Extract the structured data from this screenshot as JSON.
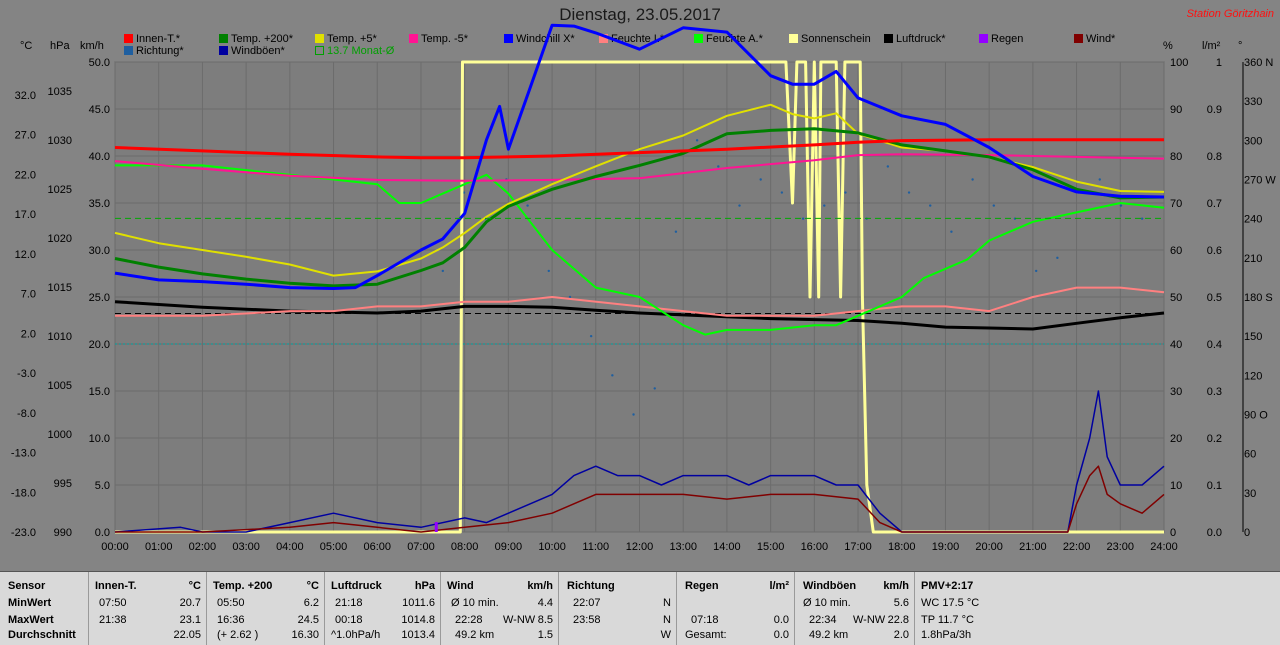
{
  "title": "Dienstag, 23.05.2017",
  "station": "Station Göritzhain",
  "legend": [
    {
      "label": "Innen-T.*",
      "color": "#ff0000"
    },
    {
      "label": "Temp. +200*",
      "color": "#008000"
    },
    {
      "label": "Temp. +5*",
      "color": "#e0e000"
    },
    {
      "label": "Temp. -5*",
      "color": "#ff1493"
    },
    {
      "label": "Windchill X*",
      "color": "#0000ff"
    },
    {
      "label": "Feuchte I.*",
      "color": "#ff8080"
    },
    {
      "label": "Feuchte A.*",
      "color": "#00ff00"
    },
    {
      "label": "Sonnenschein",
      "color": "#ffff99"
    },
    {
      "label": "Luftdruck*",
      "color": "#000000"
    },
    {
      "label": "Regen",
      "color": "#9400ff"
    },
    {
      "label": "Wind*",
      "color": "#800000"
    },
    {
      "label": "Richtung*",
      "color": "#1f5fa0"
    },
    {
      "label": "Windböen*",
      "color": "#0000a0"
    },
    {
      "label": "13.7 Monat-Ø",
      "color": "#00aa00"
    }
  ],
  "units": {
    "degc": "°C",
    "hpa": "hPa",
    "kmh": "km/h",
    "pct": "%",
    "lm2": "l/m²",
    "deg": "°"
  },
  "chart_data": {
    "type": "line",
    "x_ticks": [
      "00:00",
      "01:00",
      "02:00",
      "03:00",
      "04:00",
      "05:00",
      "06:00",
      "07:00",
      "08:00",
      "09:00",
      "10:00",
      "11:00",
      "12:00",
      "13:00",
      "14:00",
      "15:00",
      "16:00",
      "17:00",
      "18:00",
      "19:00",
      "20:00",
      "21:00",
      "22:00",
      "23:00",
      "24:00"
    ],
    "axes": {
      "temp_c": [
        "32.0",
        "27.0",
        "22.0",
        "17.0",
        "12.0",
        "7.0",
        "2.0",
        "-3.0",
        "-8.0",
        "-13.0",
        "-18.0",
        "-23.0"
      ],
      "pressure_hpa": [
        "1035",
        "1030",
        "1025",
        "1020",
        "1015",
        "1010",
        "1005",
        "1000",
        "995",
        "990"
      ],
      "wind_kmh": [
        "50.0",
        "45.0",
        "40.0",
        "35.0",
        "30.0",
        "25.0",
        "20.0",
        "15.0",
        "10.0",
        "5.0",
        "0.0"
      ],
      "humidity_pct": [
        "100",
        "90",
        "80",
        "70",
        "60",
        "50",
        "40",
        "30",
        "20",
        "10",
        "0"
      ],
      "rain_lm2": [
        "1",
        "0.9",
        "0.8",
        "0.7",
        "0.6",
        "0.5",
        "0.4",
        "0.3",
        "0.2",
        "0.1",
        "0.0"
      ],
      "direction_deg": [
        "360 N",
        "330",
        "300",
        "270 W",
        "240",
        "210",
        "180 S",
        "150",
        "120",
        "90 O",
        "60",
        "30",
        "0"
      ]
    },
    "ylim_temp": [
      -23,
      32
    ],
    "series": [
      {
        "name": "Innen-T.*",
        "color": "#ff0000",
        "width": 3,
        "unit": "temp",
        "x": [
          0,
          2,
          4,
          6,
          7,
          8,
          10,
          12,
          14,
          16,
          17,
          18,
          20,
          22,
          24
        ],
        "y": [
          22.0,
          21.6,
          21.2,
          20.9,
          20.8,
          20.8,
          21.0,
          21.4,
          21.8,
          22.3,
          22.6,
          22.8,
          22.9,
          22.9,
          22.9
        ]
      },
      {
        "name": "Temp. +200*",
        "color": "#008000",
        "width": 3,
        "unit": "temp",
        "x": [
          0,
          1,
          2,
          3,
          4,
          5,
          6,
          7,
          7.5,
          8,
          8.5,
          9,
          10,
          11,
          12,
          13,
          14,
          15,
          16,
          17,
          18,
          19,
          20,
          21,
          22,
          23,
          24
        ],
        "y": [
          9.0,
          8.0,
          7.2,
          6.6,
          6.1,
          5.8,
          6.0,
          7.6,
          8.5,
          10.3,
          13.3,
          15.1,
          17.1,
          18.6,
          19.9,
          21.3,
          23.6,
          24.0,
          24.2,
          23.7,
          22.3,
          21.6,
          20.9,
          19.4,
          17.1,
          16.1,
          16.2
        ]
      },
      {
        "name": "Temp. +5*",
        "color": "#e0e000",
        "width": 2,
        "unit": "temp",
        "x": [
          0,
          1,
          2,
          3,
          4,
          5,
          6,
          7,
          7.5,
          8,
          8.5,
          9,
          10,
          11,
          12,
          13,
          14,
          15,
          15.5,
          16,
          16.5,
          17,
          18,
          19,
          20,
          21,
          22,
          23,
          24
        ],
        "y": [
          12.0,
          10.8,
          10.0,
          9.2,
          8.3,
          7.0,
          7.5,
          9.0,
          10.3,
          12.0,
          13.9,
          15.4,
          17.7,
          19.8,
          21.8,
          23.4,
          25.7,
          27.0,
          25.9,
          25.4,
          26.0,
          23.6,
          22.0,
          21.6,
          20.9,
          19.7,
          18.0,
          16.9,
          16.8
        ]
      },
      {
        "name": "Temp. -5*",
        "color": "#ff1493",
        "width": 2,
        "unit": "temp",
        "x": [
          0,
          2,
          4,
          6,
          8,
          10,
          12,
          14,
          16,
          17,
          18,
          20,
          22,
          24
        ],
        "y": [
          20.4,
          19.5,
          18.7,
          18.2,
          18.1,
          18.2,
          18.4,
          19.6,
          20.5,
          21.1,
          21.2,
          21.1,
          20.9,
          20.7
        ]
      },
      {
        "name": "Windchill X*",
        "color": "#0000ff",
        "width": 3,
        "unit": "temp",
        "x": [
          0,
          1,
          2,
          3,
          4,
          5,
          5.5,
          6,
          7,
          7.5,
          8,
          8.5,
          8.8,
          9,
          9.5,
          10,
          10.5,
          11,
          12,
          13,
          14,
          15,
          15.5,
          16,
          16.5,
          17,
          18,
          19,
          20,
          21,
          22,
          23,
          24
        ],
        "y": [
          7.3,
          6.5,
          6.3,
          6.0,
          5.6,
          5.5,
          5.6,
          7.0,
          10.0,
          11.3,
          14.3,
          22.9,
          26.8,
          21.8,
          29.0,
          36.3,
          36.2,
          35.4,
          33.5,
          36.0,
          35.5,
          30.4,
          29.4,
          29.4,
          30.9,
          27.8,
          25.7,
          24.7,
          22.0,
          18.6,
          16.8,
          16.3,
          16.2
        ]
      },
      {
        "name": "Feuchte I.*",
        "color": "#ff8080",
        "width": 2,
        "unit": "pct",
        "x": [
          0,
          2,
          4,
          5,
          6,
          7,
          8,
          9,
          10,
          12,
          13,
          14,
          15,
          16,
          17,
          18,
          19,
          20,
          21,
          22,
          23,
          24
        ],
        "y": [
          46,
          46,
          47,
          47,
          48,
          48,
          49,
          49,
          50,
          48,
          47,
          46,
          46,
          46,
          47,
          48,
          48,
          47,
          50,
          52,
          52,
          51
        ]
      },
      {
        "name": "Feuchte A.*",
        "color": "#00ff00",
        "width": 2,
        "unit": "pct",
        "x": [
          0,
          1,
          2,
          3,
          4,
          5,
          6,
          6.5,
          7,
          7.5,
          8,
          8.5,
          9,
          9.5,
          10,
          11,
          12,
          13,
          13.5,
          14,
          15,
          16,
          16.5,
          17,
          17.5,
          18,
          18.5,
          19,
          19.5,
          20,
          20.5,
          21,
          22,
          23,
          24
        ],
        "y": [
          78,
          78,
          78,
          77,
          76,
          75,
          74,
          70,
          70,
          72,
          74,
          76,
          72,
          66,
          60,
          52,
          50,
          44,
          42,
          43,
          43,
          44,
          44,
          46,
          48,
          50,
          54,
          56,
          58,
          62,
          64,
          66,
          68,
          70,
          69
        ]
      },
      {
        "name": "Sonnenschein",
        "color": "#ffff99",
        "width": 3,
        "unit": "pct",
        "x": [
          0,
          7.9,
          7.95,
          15.35,
          15.4,
          15.5,
          15.6,
          15.8,
          15.9,
          16.0,
          16.1,
          16.15,
          16.2,
          16.4,
          16.5,
          16.6,
          16.7,
          16.75,
          17.0,
          17.05,
          17.1,
          17.2,
          17.35,
          17.5,
          24
        ],
        "y": [
          0,
          0,
          100,
          100,
          90,
          70,
          100,
          100,
          50,
          100,
          50,
          100,
          100,
          100,
          100,
          50,
          100,
          100,
          100,
          100,
          50,
          10,
          0,
          0,
          0
        ]
      },
      {
        "name": "Luftdruck*",
        "color": "#000000",
        "width": 3,
        "unit": "hpa",
        "x": [
          0,
          1,
          2,
          3,
          4,
          5,
          6,
          7,
          8,
          9,
          10,
          11,
          12,
          13,
          14,
          15,
          16,
          17,
          18,
          19,
          20,
          21,
          22,
          23,
          24
        ],
        "y": [
          1014.5,
          1014.2,
          1013.9,
          1013.7,
          1013.5,
          1013.4,
          1013.3,
          1013.5,
          1014.0,
          1014.0,
          1013.9,
          1013.6,
          1013.3,
          1013.1,
          1012.9,
          1012.7,
          1012.6,
          1012.5,
          1012.2,
          1011.8,
          1011.7,
          1011.6,
          1012.2,
          1012.8,
          1013.3
        ]
      },
      {
        "name": "Windböen*",
        "color": "#0000a0",
        "width": 1.5,
        "unit": "kmh",
        "x": [
          0,
          1.5,
          2,
          3,
          4,
          5,
          6,
          7,
          8,
          8.5,
          9,
          10,
          10.5,
          11,
          11.5,
          12,
          12.5,
          13,
          13.5,
          14,
          14.5,
          15,
          15.5,
          16,
          16.5,
          17,
          17.5,
          18,
          19,
          20,
          21,
          21.8,
          22,
          22.3,
          22.5,
          22.7,
          23,
          23.5,
          24
        ],
        "y": [
          0,
          0.5,
          0,
          0,
          1,
          2,
          1,
          0.5,
          1.5,
          1.0,
          2,
          4,
          6,
          7,
          6,
          6,
          5,
          6,
          6,
          6,
          5,
          6,
          6,
          6,
          5,
          5,
          2,
          0,
          0,
          0,
          0,
          0,
          5,
          10,
          15,
          8,
          5,
          5,
          7
        ]
      },
      {
        "name": "Wind*",
        "color": "#800000",
        "width": 1.5,
        "unit": "kmh",
        "x": [
          0,
          2,
          4,
          5,
          6,
          7,
          8,
          9,
          10,
          10.5,
          11,
          11.5,
          12,
          13,
          14,
          15,
          16,
          17,
          17.5,
          18,
          19,
          20,
          21,
          21.8,
          22,
          22.3,
          22.5,
          22.7,
          23,
          23.5,
          24
        ],
        "y": [
          0,
          0,
          0.5,
          1,
          0.5,
          0,
          0.5,
          1,
          2,
          3,
          4,
          4,
          4,
          4,
          3.5,
          4,
          4,
          3.5,
          1,
          0,
          0,
          0,
          0,
          0,
          3,
          6,
          7,
          4,
          3,
          2,
          4
        ]
      },
      {
        "name": "13.7 Monat-Ø",
        "color": "#00aa00",
        "width": 1,
        "dash": "6,4",
        "unit": "temp",
        "x": [
          0,
          24
        ],
        "y": [
          13.7,
          13.7
        ]
      }
    ],
    "reference_lines": [
      {
        "color": "#000000",
        "unit": "hpa",
        "value": 1013.25,
        "dash": "6,4"
      },
      {
        "color": "#00a0a0",
        "unit": "pct",
        "value": 40,
        "dash": "2,2"
      }
    ],
    "rain_marker": {
      "x": 7.35,
      "value": 0.02
    },
    "direction_dots_deg": [
      200,
      260,
      240,
      270,
      250,
      200,
      180,
      150,
      120,
      90,
      110,
      230,
      300,
      280,
      250,
      270,
      260,
      240,
      250,
      260,
      240,
      280,
      260,
      250,
      230,
      270,
      250,
      240,
      200,
      210,
      260,
      270,
      250,
      240
    ]
  },
  "stats": {
    "columns": [
      {
        "head1": "Sensor",
        "head2": "",
        "rows": [
          "MinWert",
          "MaxWert",
          "Durchschnitt"
        ]
      },
      {
        "head1": "Innen-T.",
        "head2": "°C",
        "rows": [
          [
            "07:50",
            "20.7"
          ],
          [
            "21:38",
            "23.1"
          ],
          [
            "",
            "22.05"
          ]
        ]
      },
      {
        "head1": "Temp. +200",
        "head2": "°C",
        "rows": [
          [
            "05:50",
            "6.2"
          ],
          [
            "16:36",
            "24.5"
          ],
          [
            "(+ 2.62 )",
            "16.30"
          ]
        ]
      },
      {
        "head1": "Luftdruck",
        "head2": "hPa",
        "rows": [
          [
            "21:18",
            "1011.6"
          ],
          [
            "00:18",
            "1014.8"
          ],
          [
            "^1.0hPa/h",
            "1013.4"
          ]
        ]
      },
      {
        "head1": "Wind",
        "head2": "km/h",
        "rows": [
          [
            "Ø 10 min.",
            "",
            "4.4"
          ],
          [
            "22:28",
            "W-NW",
            "8.5"
          ],
          [
            "49.2 km",
            "",
            "1.5"
          ]
        ]
      },
      {
        "head1": "Richtung",
        "head2": "",
        "rows": [
          [
            "22:07",
            "N"
          ],
          [
            "23:58",
            "N"
          ],
          [
            "",
            "W"
          ]
        ]
      },
      {
        "head1": "Regen",
        "head2": "l/m²",
        "rows": [
          [
            "",
            ""
          ],
          [
            "07:18",
            "0.0"
          ],
          [
            "Gesamt:",
            "0.0"
          ]
        ]
      },
      {
        "head1": "Windböen",
        "head2": "km/h",
        "rows": [
          [
            "Ø 10 min.",
            "",
            "5.6"
          ],
          [
            "22:34",
            "W-NW",
            "22.8"
          ],
          [
            "49.2 km",
            "",
            "2.0"
          ]
        ]
      },
      {
        "head1": "PMV+2:17",
        "head2": "",
        "rows": [
          "WC 17.5 °C",
          "TP 11.7 °C",
          "1.8hPa/3h"
        ]
      }
    ]
  }
}
